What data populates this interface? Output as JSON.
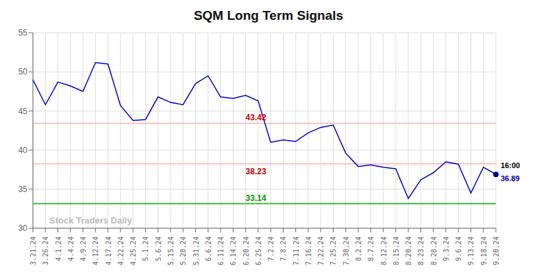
{
  "chart_data": {
    "type": "line",
    "title": "SQM Long Term Signals",
    "categories": [
      "3.21.24",
      "3.26.24",
      "4.1.24",
      "4.4.24",
      "4.9.24",
      "4.12.24",
      "4.17.24",
      "4.22.24",
      "4.25.24",
      "5.1.24",
      "5.6.24",
      "5.15.24",
      "5.28.24",
      "5.31.24",
      "6.6.24",
      "6.11.24",
      "6.14.24",
      "6.20.24",
      "6.25.24",
      "7.2.24",
      "7.8.24",
      "7.11.24",
      "7.16.24",
      "7.22.24",
      "7.25.24",
      "7.30.24",
      "8.2.24",
      "8.7.24",
      "8.12.24",
      "8.15.24",
      "8.20.24",
      "8.23.24",
      "8.28.24",
      "9.3.24",
      "9.6.24",
      "9.13.24",
      "9.18.24",
      "9.20.24"
    ],
    "values": [
      49.0,
      45.8,
      48.7,
      48.2,
      47.5,
      51.2,
      51.0,
      45.7,
      43.8,
      43.9,
      46.8,
      46.1,
      45.8,
      48.5,
      49.5,
      46.8,
      46.6,
      47.0,
      46.3,
      41.0,
      41.3,
      41.1,
      42.2,
      42.9,
      43.2,
      39.6,
      37.9,
      38.1,
      37.8,
      37.6,
      33.8,
      36.2,
      37.1,
      38.5,
      38.2,
      34.5,
      37.8,
      36.89
    ],
    "color": "#0000cc",
    "ylim": [
      30,
      55
    ],
    "yticks": [
      30,
      35,
      40,
      45,
      50,
      55
    ],
    "grid": true,
    "hlines": [
      {
        "value": 43.42,
        "color": "#ffb3b3",
        "label": "43.42",
        "label_color": "#cc0000",
        "label_side": "above"
      },
      {
        "value": 38.23,
        "color": "#ffb3b3",
        "label": "38.23",
        "label_color": "#cc0000",
        "label_side": "below"
      },
      {
        "value": 33.14,
        "color": "#00bb00",
        "label": "33.14",
        "label_color": "#009900",
        "label_side": "above"
      }
    ],
    "end_marker_color": "#000099",
    "annotations": [
      {
        "text": "16:00",
        "color": "#000000"
      },
      {
        "text": "36.89",
        "color": "#000099"
      }
    ],
    "watermark": "Stock Traders Daily",
    "watermark_color": "#bbbbbb",
    "background_color": "#ffffff"
  }
}
